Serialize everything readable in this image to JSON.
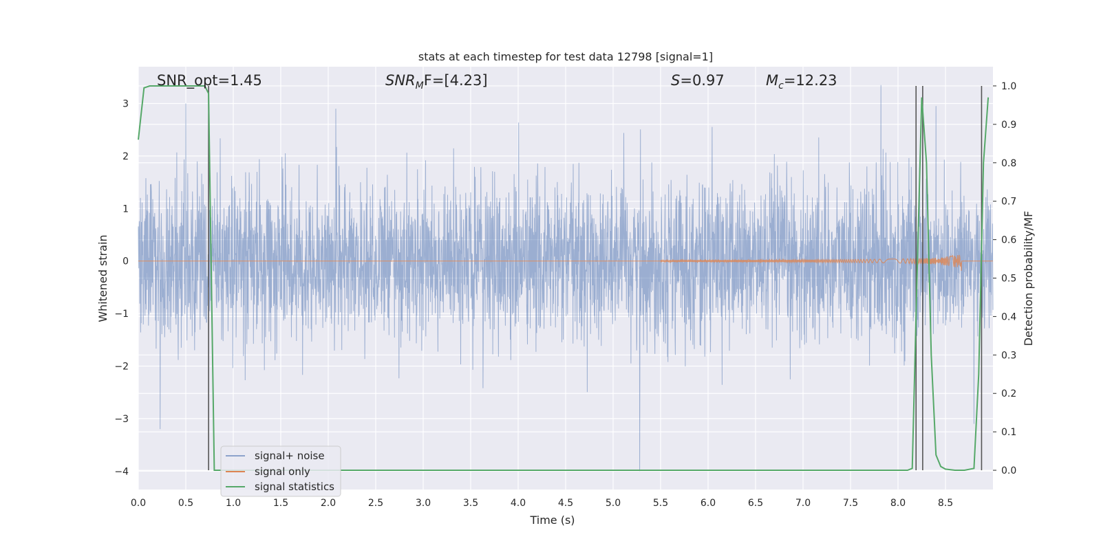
{
  "chart_data": {
    "type": "line",
    "title": "stats at each timestep for test data 12798 [signal=1]",
    "xlabel": "Time (s)",
    "ylabel": "Whitened strain",
    "y2label": "Detection probability/MF",
    "xlim": [
      0.0,
      9.0
    ],
    "ylim": [
      -4.35,
      3.7
    ],
    "y2lim": [
      -0.05,
      1.05
    ],
    "xticks": [
      "0.0",
      "0.5",
      "1.0",
      "1.5",
      "2.0",
      "2.5",
      "3.0",
      "3.5",
      "4.0",
      "4.5",
      "5.0",
      "5.5",
      "6.0",
      "6.5",
      "7.0",
      "7.5",
      "8.0",
      "8.5"
    ],
    "yticks": [
      "3",
      "2",
      "1",
      "0",
      "−1",
      "−2",
      "−3",
      "−4"
    ],
    "y2ticks": [
      "1.0",
      "0.9",
      "0.8",
      "0.7",
      "0.6",
      "0.5",
      "0.4",
      "0.3",
      "0.2",
      "0.1",
      "0.0"
    ],
    "grid": true,
    "legend_placement": "lower-left",
    "colors": {
      "noise": "#4c72b0",
      "signal": "#dd8452",
      "statistics": "#55a868",
      "vlines": "#555555",
      "background": "#eaeaf2"
    },
    "annotations": {
      "snr_opt": "SNR_opt=1.45",
      "snr_mf_prefix": "SNR",
      "snr_mf_sub": "M",
      "snr_mf_suffix": "F=[4.23]",
      "s_prefix": "S",
      "s_suffix": "=0.97",
      "mc_prefix": "M",
      "mc_sub": "c",
      "mc_suffix": "=12.23"
    },
    "series": [
      {
        "name": "signal+ noise",
        "description_type": "noise",
        "t_range": [
          0.0,
          9.0
        ],
        "amplitude_std": 0.75,
        "notable_spikes": [
          {
            "t": 0.23,
            "y": -3.2
          },
          {
            "t": 0.5,
            "y": 3.0
          },
          {
            "t": 2.08,
            "y": 2.9
          },
          {
            "t": 5.28,
            "y": -4.0
          },
          {
            "t": 7.82,
            "y": 3.35
          },
          {
            "t": 8.4,
            "y": 2.95
          },
          {
            "t": 8.8,
            "y": -3.1
          }
        ]
      },
      {
        "name": "signal only",
        "description_type": "chirp",
        "t_start": 5.5,
        "t_merge": 8.67,
        "peak_amplitude": 0.2
      },
      {
        "name": "signal statistics",
        "axis": "right",
        "x": [
          0.0,
          0.06,
          0.12,
          0.2,
          0.3,
          0.4,
          0.5,
          0.6,
          0.7,
          0.74,
          0.8,
          0.85,
          1.0,
          2.0,
          3.0,
          4.0,
          5.0,
          6.0,
          7.0,
          8.0,
          8.1,
          8.15,
          8.2,
          8.25,
          8.3,
          8.35,
          8.4,
          8.45,
          8.5,
          8.6,
          8.7,
          8.8,
          8.85,
          8.9,
          8.95
        ],
        "y": [
          0.86,
          0.995,
          1.0,
          1.0,
          1.0,
          1.0,
          1.0,
          1.0,
          1.0,
          0.98,
          0.0,
          0.0,
          0.0,
          0.0,
          0.0,
          0.0,
          0.0,
          0.0,
          0.0,
          0.0,
          0.0,
          0.005,
          0.5,
          0.97,
          0.8,
          0.3,
          0.04,
          0.01,
          0.003,
          0.0,
          0.0,
          0.005,
          0.25,
          0.8,
          0.97
        ]
      }
    ],
    "vlines": [
      0.74,
      8.19,
      8.26,
      8.88
    ]
  }
}
